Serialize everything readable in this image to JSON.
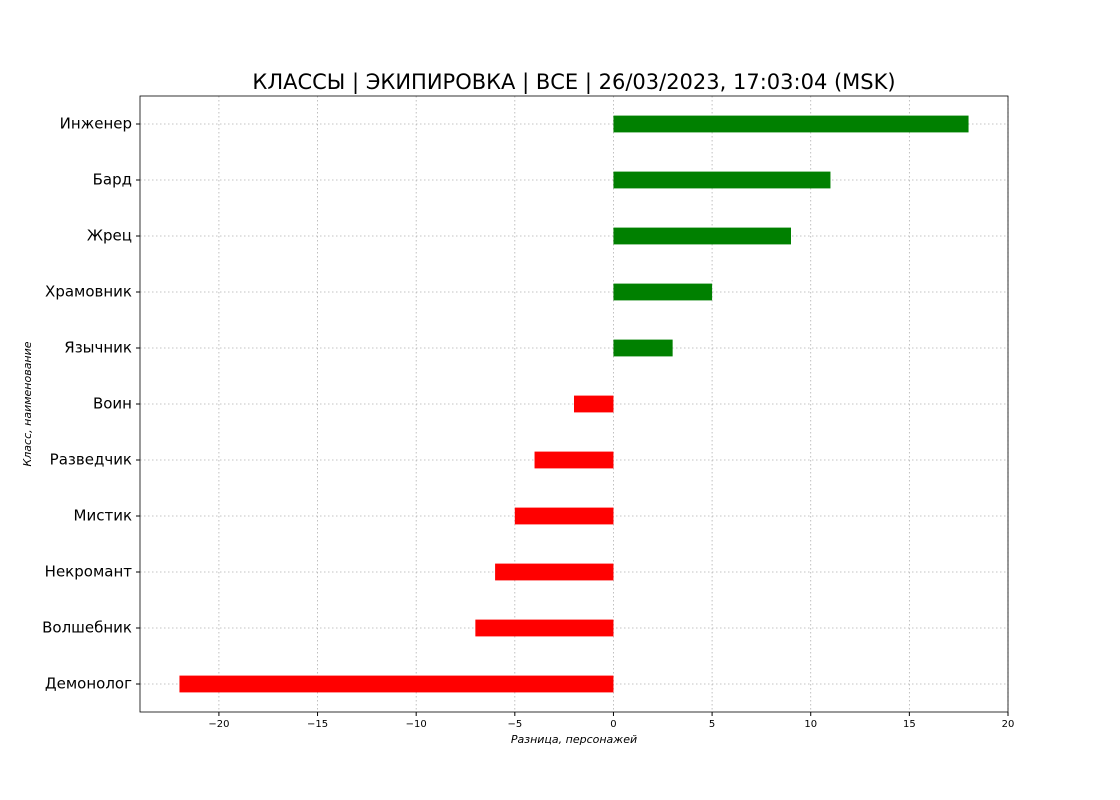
{
  "chart_data": {
    "type": "barh",
    "title": "КЛАССЫ | ЭКИПИРОВКА | ВСЕ | 26/03/2023, 17:03:04 (MSK)",
    "xlabel": "Разница, персонажей",
    "ylabel": "Класс, наименование",
    "categories": [
      "Инженер",
      "Бард",
      "Жрец",
      "Храмовник",
      "Язычник",
      "Воин",
      "Разведчик",
      "Мистик",
      "Некромант",
      "Волшебник",
      "Демонолог"
    ],
    "values": [
      18,
      11,
      9,
      5,
      3,
      -2,
      -4,
      -5,
      -6,
      -7,
      -22
    ],
    "colors": [
      "#008000",
      "#008000",
      "#008000",
      "#008000",
      "#008000",
      "#ff0000",
      "#ff0000",
      "#ff0000",
      "#ff0000",
      "#ff0000",
      "#ff0000"
    ],
    "xlim": [
      -24,
      20
    ],
    "xticks": [
      {
        "value": -20,
        "label": "−20"
      },
      {
        "value": -15,
        "label": "−15"
      },
      {
        "value": -10,
        "label": "−10"
      },
      {
        "value": -5,
        "label": "−5"
      },
      0,
      5,
      10,
      15,
      20
    ],
    "grid": true
  }
}
